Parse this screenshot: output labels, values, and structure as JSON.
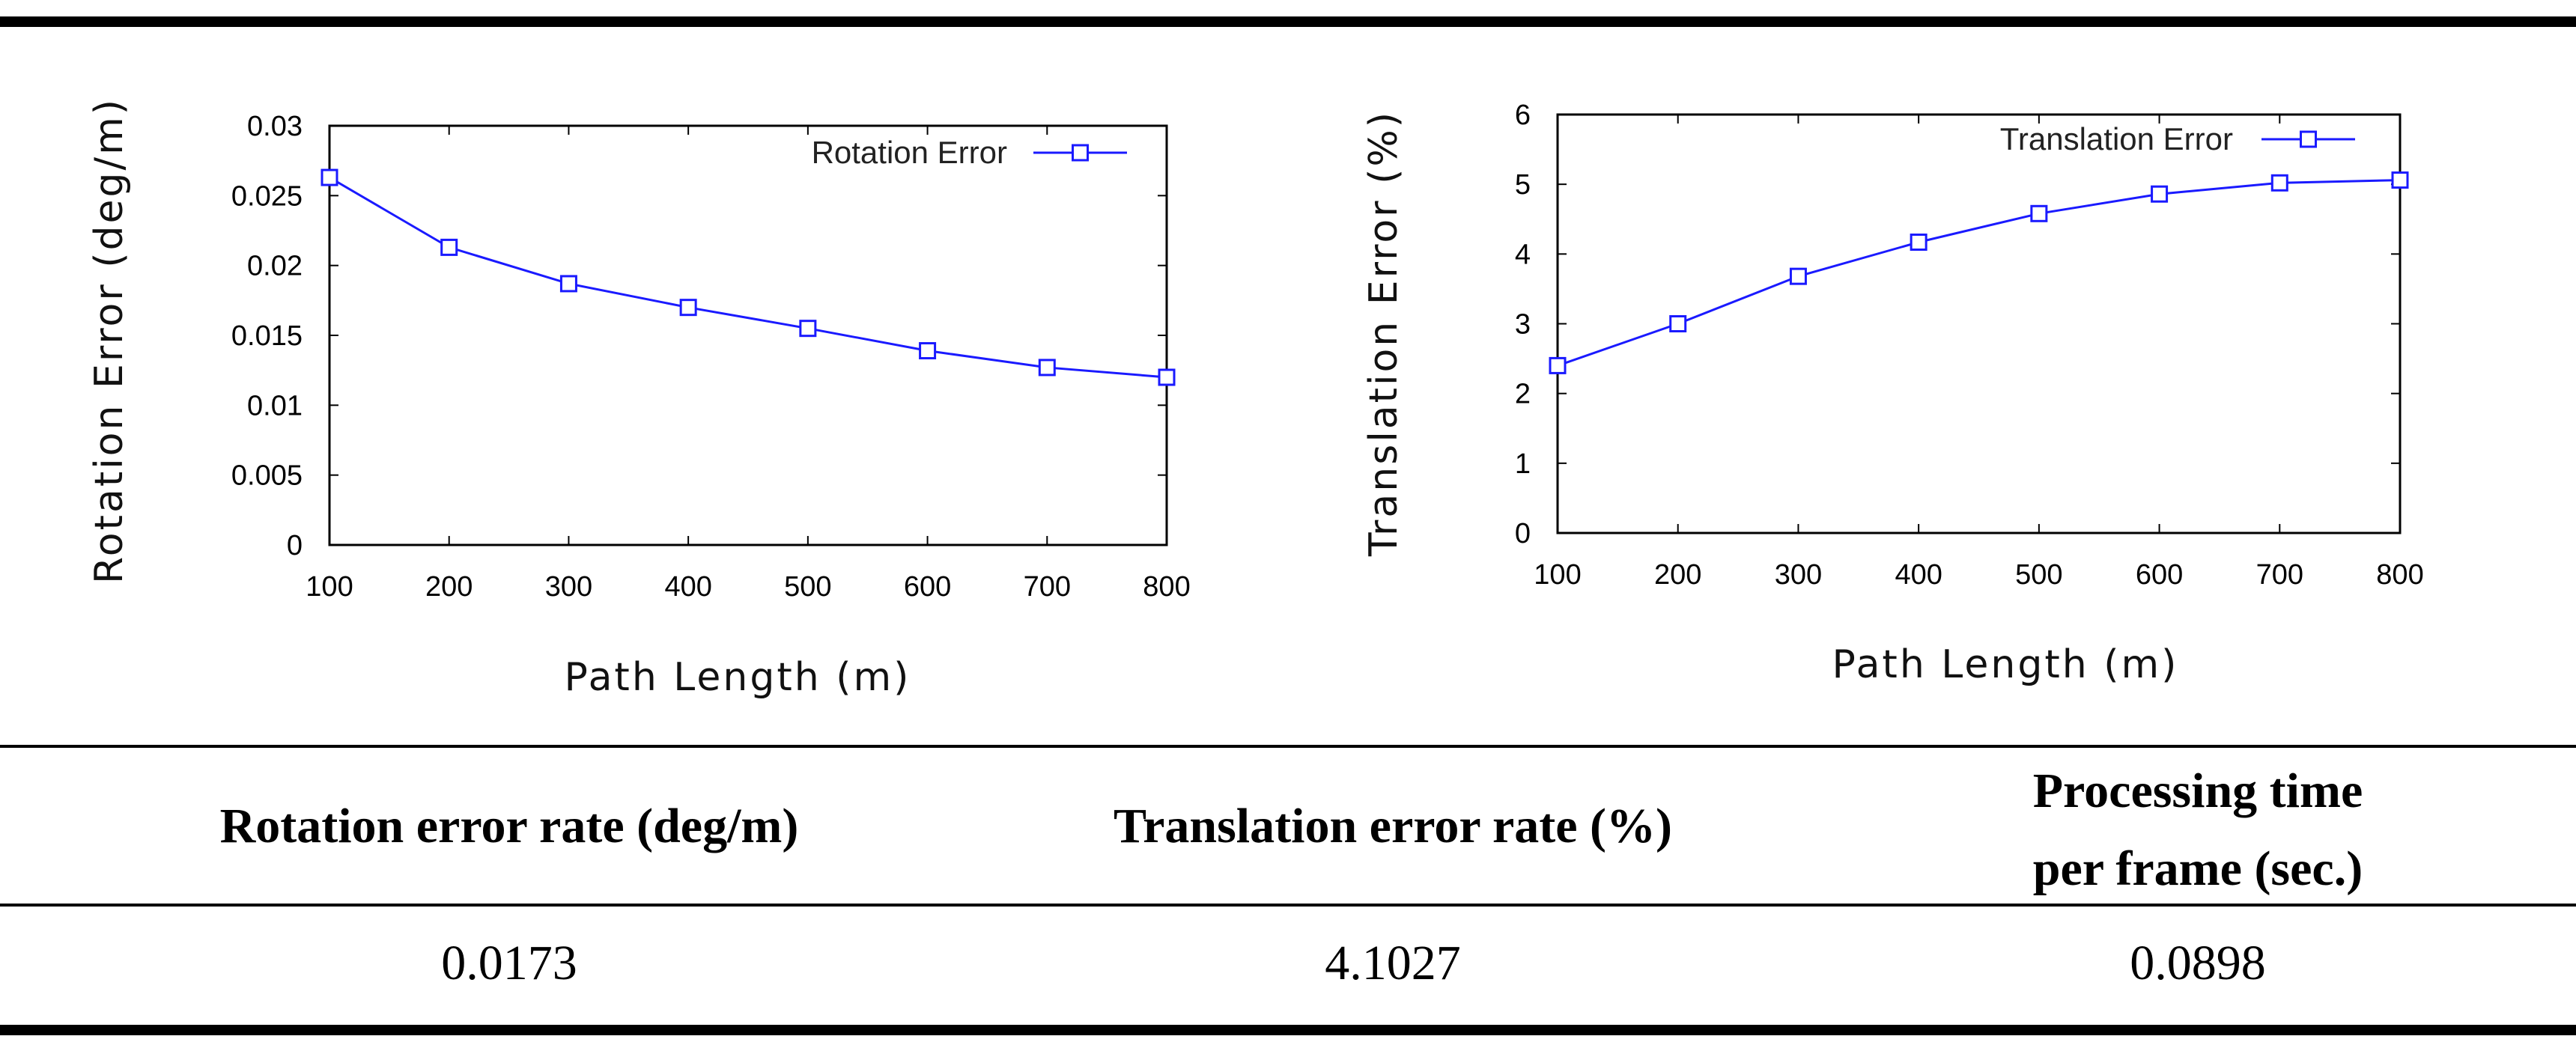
{
  "chart_data": [
    {
      "type": "line",
      "title": "",
      "xlabel": "Path Length (m)",
      "ylabel": "Rotation Error (deg/m)",
      "x": [
        100,
        200,
        300,
        400,
        500,
        600,
        700,
        800
      ],
      "series": [
        {
          "name": "Rotation Error",
          "values": [
            0.0263,
            0.0213,
            0.0187,
            0.017,
            0.0155,
            0.0139,
            0.0127,
            0.012
          ]
        }
      ],
      "xlim": [
        100,
        800
      ],
      "ylim": [
        0,
        0.03
      ],
      "yticks": [
        "0",
        "0.005",
        "0.01",
        "0.015",
        "0.02",
        "0.025",
        "0.03"
      ],
      "xticks": [
        "100",
        "200",
        "300",
        "400",
        "500",
        "600",
        "700",
        "800"
      ],
      "legend": "top-right",
      "color": "#1a1aff"
    },
    {
      "type": "line",
      "title": "",
      "xlabel": "Path Length (m)",
      "ylabel": "Translation Error (%)",
      "x": [
        100,
        200,
        300,
        400,
        500,
        600,
        700,
        800
      ],
      "series": [
        {
          "name": "Translation Error",
          "values": [
            2.4,
            3.0,
            3.68,
            4.17,
            4.58,
            4.86,
            5.02,
            5.06
          ]
        }
      ],
      "xlim": [
        100,
        800
      ],
      "ylim": [
        0,
        6
      ],
      "yticks": [
        "0",
        "1",
        "2",
        "3",
        "4",
        "5",
        "6"
      ],
      "xticks": [
        "100",
        "200",
        "300",
        "400",
        "500",
        "600",
        "700",
        "800"
      ],
      "legend": "top-right",
      "color": "#1a1aff"
    }
  ],
  "table": {
    "headers": [
      "Rotation error rate (deg/m)",
      "Translation error rate (%)",
      "Processing time per frame (sec.)"
    ],
    "header_line1": "Processing time",
    "header_line2": "per frame (sec.)",
    "values": [
      "0.0173",
      "4.1027",
      "0.0898"
    ]
  }
}
